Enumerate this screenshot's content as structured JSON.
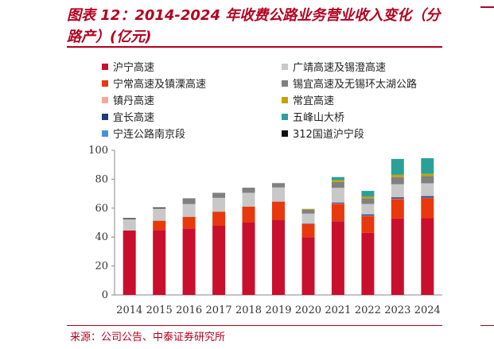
{
  "header": {
    "title": "图表 12：2014-2024 年收费公路业务营业收入变化（分路产）(亿元)"
  },
  "footer": {
    "source": "来源：公司公告、中泰证券研究所"
  },
  "chart_data": {
    "type": "bar",
    "stacked": true,
    "title": "图表 12：2014-2024 年收费公路业务营业收入变化（分路产）(亿元)",
    "xlabel": "",
    "ylabel": "",
    "ylim": [
      0,
      100
    ],
    "yticks": [
      0,
      20,
      40,
      60,
      80,
      100
    ],
    "grid": false,
    "legend_position": "top",
    "categories": [
      "2014",
      "2015",
      "2016",
      "2017",
      "2018",
      "2019",
      "2020",
      "2021",
      "2022",
      "2023",
      "2024"
    ],
    "series": [
      {
        "name": "沪宁高速",
        "color": "#c8102e",
        "values": [
          44.5,
          44.8,
          45.8,
          47.8,
          50.0,
          52.0,
          40.0,
          51.0,
          43.0,
          52.8,
          53.0
        ]
      },
      {
        "name": "宁常高速及镇溧高速",
        "color": "#e8380d",
        "values": [
          0,
          6.5,
          8.2,
          9.8,
          11.0,
          12.5,
          9.0,
          12.0,
          11.5,
          13.5,
          14.0
        ]
      },
      {
        "name": "镇丹高速",
        "color": "#f4a6a0",
        "values": [
          0,
          0,
          0,
          0,
          0,
          0,
          0.2,
          0.3,
          0.3,
          0.3,
          0.3
        ]
      },
      {
        "name": "宜长高速",
        "color": "#1f3a7a",
        "values": [
          0,
          0,
          0,
          0,
          0,
          0,
          0.2,
          0.5,
          0.8,
          0.8,
          0.8
        ]
      },
      {
        "name": "宁连公路南京段",
        "color": "#4a8fe0",
        "values": [
          0,
          0,
          0,
          0,
          0,
          0,
          0,
          0.3,
          0.3,
          0.3,
          0.3
        ]
      },
      {
        "name": "广靖高速及锡澄高速",
        "color": "#c8c8c8",
        "values": [
          8.0,
          8.5,
          8.8,
          9.5,
          9.6,
          9.8,
          6.8,
          10.0,
          7.0,
          8.8,
          8.8
        ]
      },
      {
        "name": "锡宜高速及无锡环太湖公路",
        "color": "#808080",
        "values": [
          0,
          0,
          4.0,
          3.5,
          3.5,
          3.0,
          2.8,
          4.0,
          3.8,
          5.0,
          5.0
        ]
      },
      {
        "name": "常宜高速",
        "color": "#c8a000",
        "values": [
          0,
          0,
          0,
          0,
          0,
          0,
          0.5,
          1.2,
          1.2,
          1.5,
          1.5
        ]
      },
      {
        "name": "五峰山大桥",
        "color": "#2aa198",
        "values": [
          0,
          0,
          0,
          0,
          0,
          0,
          0,
          2.2,
          4.0,
          11.0,
          10.8
        ]
      },
      {
        "name": "312国道沪宁段",
        "color": "#111111",
        "values": [
          0.6,
          0.6,
          0,
          0,
          0,
          0,
          0,
          0,
          0,
          0,
          0
        ]
      }
    ],
    "legend_layout": [
      [
        "沪宁高速",
        "广靖高速及锡澄高速"
      ],
      [
        "宁常高速及镇溧高速",
        "锡宜高速及无锡环太湖公路"
      ],
      [
        "镇丹高速",
        "常宜高速"
      ],
      [
        "宜长高速",
        "五峰山大桥"
      ],
      [
        "宁连公路南京段",
        "312国道沪宁段"
      ]
    ]
  }
}
